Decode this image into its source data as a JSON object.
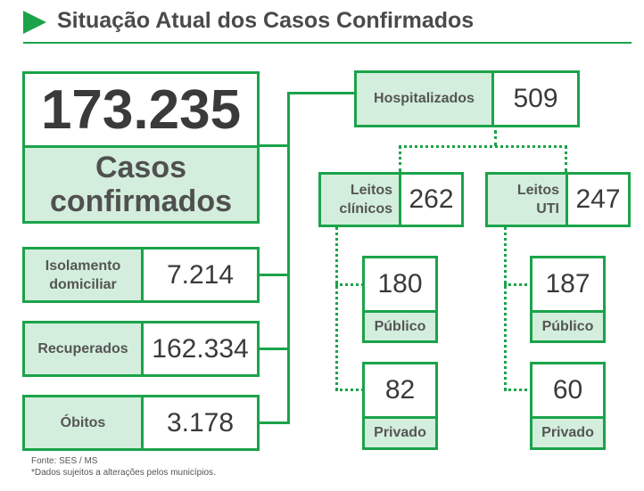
{
  "header": {
    "title": "Situação Atual dos Casos Confirmados"
  },
  "total": {
    "value": "173.235",
    "label_line1": "Casos",
    "label_line2": "confirmados"
  },
  "isolamento": {
    "label_line1": "Isolamento",
    "label_line2": "domiciliar",
    "value": "7.214"
  },
  "recuperados": {
    "label": "Recuperados",
    "value": "162.334"
  },
  "obitos": {
    "label": "Óbitos",
    "value": "3.178"
  },
  "hospitalizados": {
    "label": "Hospitalizados",
    "value": "509"
  },
  "leitos_clinicos": {
    "label_line1": "Leitos",
    "label_line2": "clínicos",
    "value": "262",
    "publico": {
      "value": "180",
      "label": "Público"
    },
    "privado": {
      "value": "82",
      "label": "Privado"
    }
  },
  "leitos_uti": {
    "label_line1": "Leitos",
    "label_line2": "UTI",
    "value": "247",
    "publico": {
      "value": "187",
      "label": "Público"
    },
    "privado": {
      "value": "60",
      "label": "Privado"
    }
  },
  "footer": {
    "source": "Fonte: SES / MS",
    "note": "*Dados sujeitos a alterações pelos municípios."
  },
  "colors": {
    "accent": "#1ba34a",
    "fill": "#d3eedc",
    "text": "#3a3a3a"
  }
}
